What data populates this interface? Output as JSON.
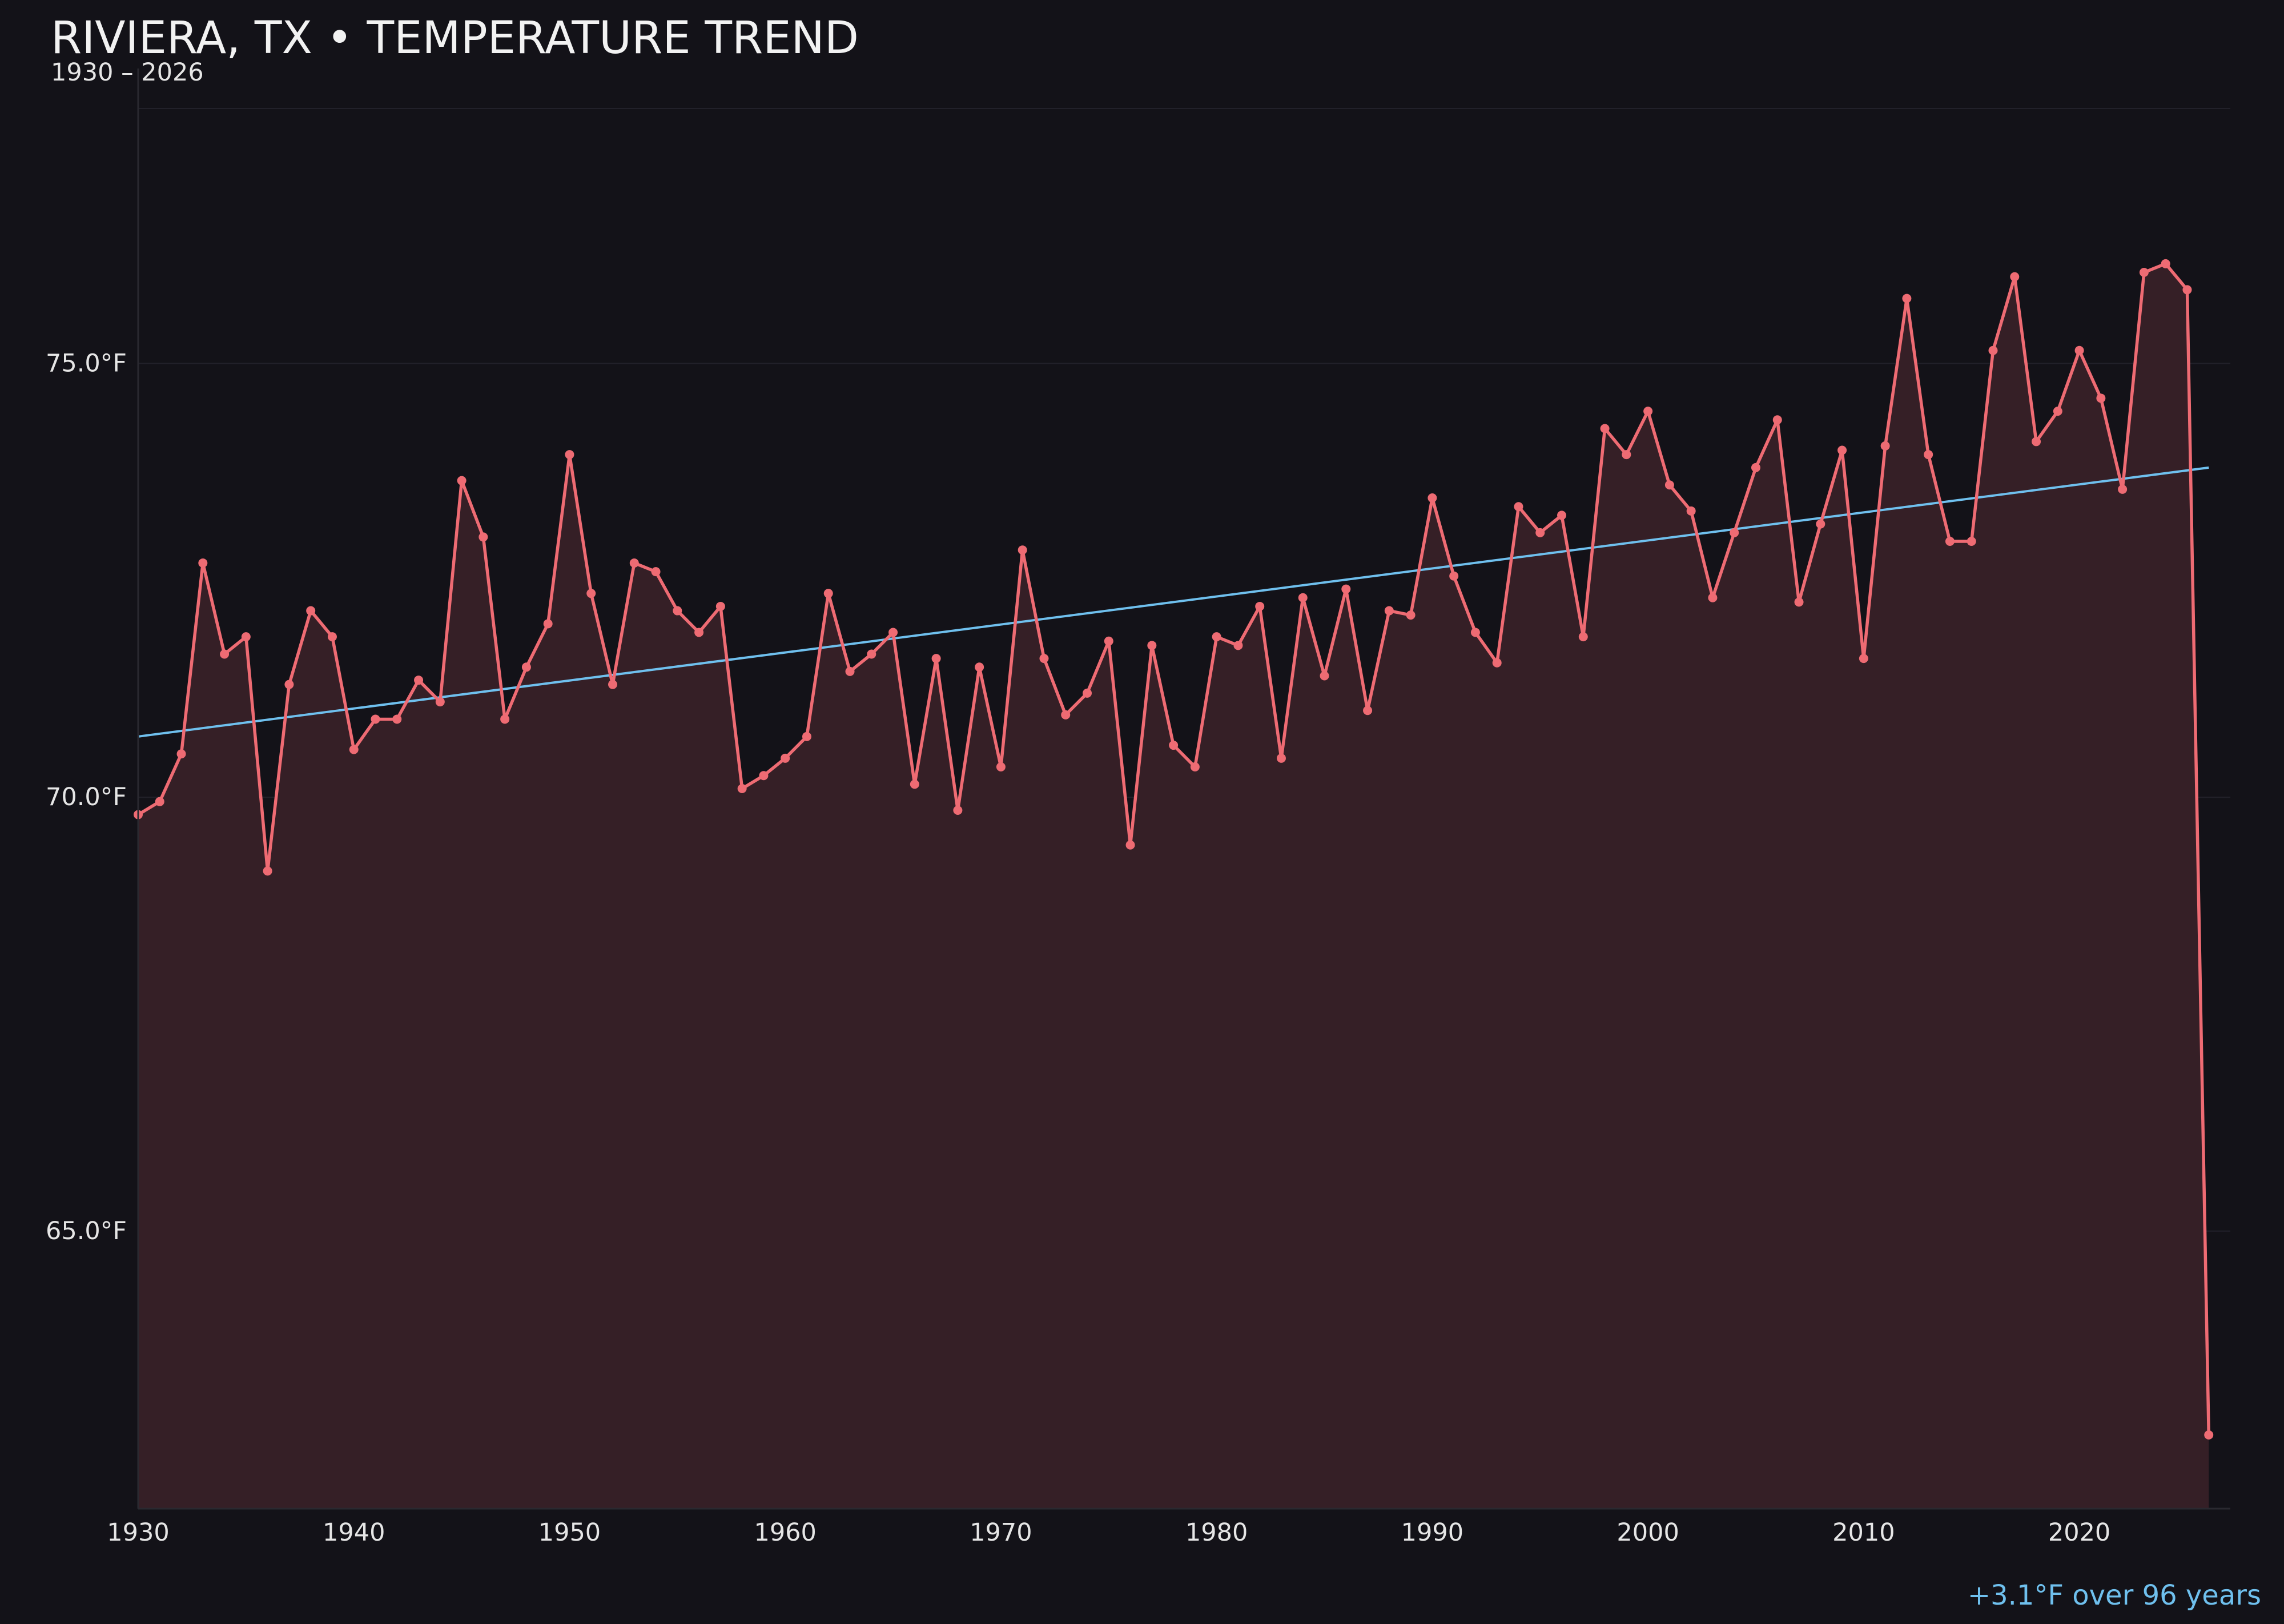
{
  "header": {
    "title": "RIVIERA, TX • TEMPERATURE TREND",
    "subtitle": "1930 – 2026"
  },
  "annotation": {
    "trend_note": "+3.1°F over 96 years"
  },
  "colors": {
    "background": "#131218",
    "temperature_line": "#ee6b73",
    "area_fill": "#351f26",
    "trend_line": "#6fc0ee",
    "grid": "#22212a",
    "axis": "#2a2930",
    "text": "#e6e6e6"
  },
  "chart_data": {
    "type": "line",
    "title": "RIVIERA, TX • TEMPERATURE TREND",
    "subtitle": "1930 – 2026",
    "xlabel": "",
    "ylabel": "",
    "xlim": [
      1930,
      2027
    ],
    "ylim": [
      61.8,
      78.4
    ],
    "x_ticks": [
      1930,
      1940,
      1950,
      1960,
      1970,
      1980,
      1990,
      2000,
      2010,
      2020
    ],
    "y_ticks": [
      65.0,
      70.0,
      75.0
    ],
    "y_tick_labels": [
      "65.0°F",
      "70.0°F",
      "75.0°F"
    ],
    "grid": "horizontal",
    "legend": "none",
    "series": [
      {
        "style": "line-with-markers-and-area",
        "x": [
          1930,
          1931,
          1932,
          1933,
          1934,
          1935,
          1936,
          1937,
          1938,
          1939,
          1940,
          1941,
          1942,
          1943,
          1944,
          1945,
          1946,
          1947,
          1948,
          1949,
          1950,
          1951,
          1952,
          1953,
          1954,
          1955,
          1956,
          1957,
          1958,
          1959,
          1960,
          1961,
          1962,
          1963,
          1964,
          1965,
          1966,
          1967,
          1968,
          1969,
          1970,
          1971,
          1972,
          1973,
          1974,
          1975,
          1976,
          1977,
          1978,
          1979,
          1980,
          1981,
          1982,
          1983,
          1984,
          1985,
          1986,
          1987,
          1988,
          1989,
          1990,
          1991,
          1992,
          1993,
          1994,
          1995,
          1996,
          1997,
          1998,
          1999,
          2000,
          2001,
          2002,
          2003,
          2004,
          2005,
          2006,
          2007,
          2008,
          2009,
          2010,
          2011,
          2012,
          2013,
          2014,
          2015,
          2016,
          2017,
          2018,
          2019,
          2020,
          2021,
          2022,
          2023,
          2024,
          2025,
          2026
        ],
        "y": [
          69.8,
          69.95,
          70.5,
          72.7,
          71.65,
          71.85,
          69.15,
          71.3,
          72.15,
          71.85,
          70.55,
          70.9,
          70.9,
          71.35,
          71.1,
          73.65,
          73.0,
          70.9,
          71.5,
          72.0,
          73.95,
          72.35,
          71.3,
          72.7,
          72.6,
          72.15,
          71.9,
          72.2,
          70.1,
          70.25,
          70.45,
          70.7,
          72.35,
          71.45,
          71.65,
          71.9,
          70.15,
          71.6,
          69.85,
          71.5,
          70.35,
          72.85,
          71.6,
          70.95,
          71.2,
          71.8,
          69.45,
          71.75,
          70.6,
          70.35,
          71.85,
          71.75,
          72.2,
          70.45,
          72.3,
          71.4,
          72.4,
          71.0,
          72.15,
          72.1,
          73.45,
          72.55,
          71.9,
          71.55,
          73.35,
          73.05,
          73.25,
          71.85,
          74.25,
          73.95,
          74.45,
          73.6,
          73.3,
          72.3,
          73.05,
          73.8,
          74.35,
          72.25,
          73.15,
          74.0,
          71.6,
          74.05,
          75.75,
          73.95,
          72.95,
          72.95,
          75.15,
          76.0,
          74.1,
          74.45,
          75.15,
          74.6,
          73.55,
          76.05,
          76.15,
          75.85,
          62.65
        ]
      },
      {
        "style": "trend-line",
        "x": [
          1930,
          2026
        ],
        "y": [
          70.7,
          73.8
        ]
      }
    ]
  }
}
